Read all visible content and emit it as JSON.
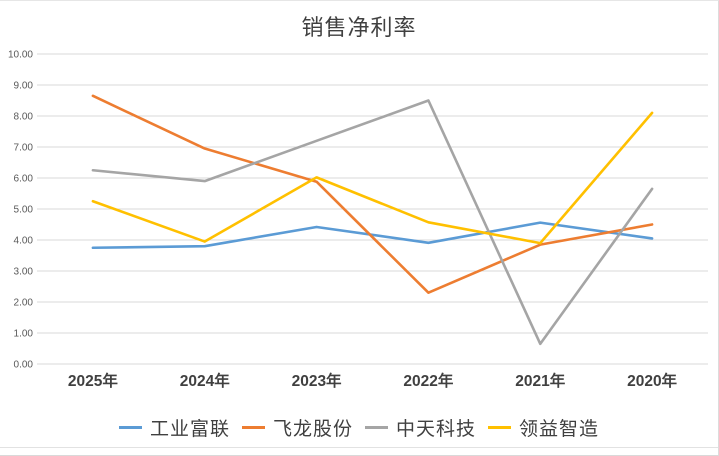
{
  "title": "销售净利率",
  "chart_data": {
    "type": "line",
    "title": "销售净利率",
    "categories": [
      "2025年",
      "2024年",
      "2023年",
      "2022年",
      "2021年",
      "2020年"
    ],
    "series": [
      {
        "name": "工业富联",
        "color": "#5B9BD5",
        "values": [
          3.75,
          3.8,
          4.42,
          3.91,
          4.56,
          4.05
        ]
      },
      {
        "name": "飞龙股份",
        "color": "#ED7D31",
        "values": [
          8.65,
          6.95,
          5.88,
          2.3,
          3.85,
          4.5
        ]
      },
      {
        "name": "中天科技",
        "color": "#A5A5A5",
        "values": [
          6.25,
          5.9,
          7.2,
          8.5,
          0.65,
          5.65
        ]
      },
      {
        "name": "领益智造",
        "color": "#FFC000",
        "values": [
          5.25,
          3.95,
          6.02,
          4.57,
          3.9,
          8.1
        ]
      }
    ],
    "xlabel": "",
    "ylabel": "",
    "ylim": [
      0,
      10
    ],
    "y_tick_labels": [
      "0.00",
      "1.00",
      "2.00",
      "3.00",
      "4.00",
      "5.00",
      "6.00",
      "7.00",
      "8.00",
      "9.00",
      "10.00"
    ],
    "grid": "horizontal",
    "legend_position": "bottom"
  },
  "colors": {
    "gridline": "#D9D9D9",
    "y_tick_text": "#595959",
    "x_label_text": "#404040",
    "title_text": "#404040",
    "background": "#FFFFFF"
  }
}
